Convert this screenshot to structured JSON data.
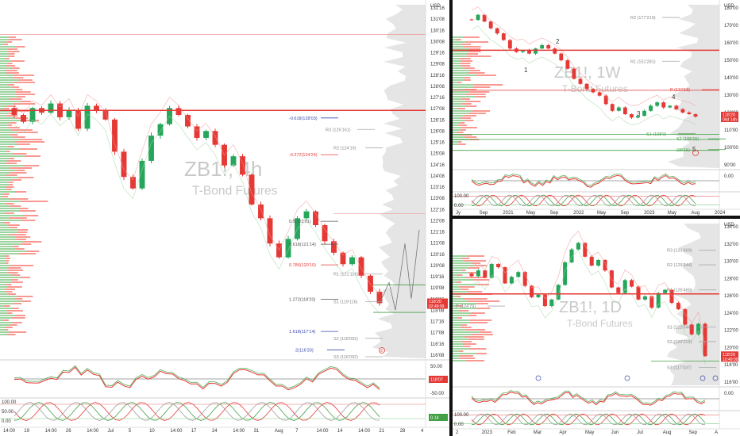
{
  "panels": {
    "left": {
      "watermark_symbol": "ZB1!, 4h",
      "watermark_name": "T-Bond Futures",
      "currency": "USD",
      "price_axis": [
        "131'16",
        "131'08",
        "130'16",
        "130'08",
        "129'16",
        "129'08",
        "128'16",
        "128'08",
        "127'16",
        "127'08",
        "126'16",
        "126'08",
        "125'16",
        "125'08",
        "124'16",
        "124'08",
        "123'16",
        "123'08",
        "122'16",
        "122'08",
        "121'16",
        "121'08",
        "120'16",
        "120'08",
        "119'16",
        "119'08",
        "118'16",
        "118'08",
        "117'16",
        "117'08",
        "116'16",
        "116'08"
      ],
      "last_price": "118'20",
      "last_price_sub": "02:49:09",
      "time_axis": [
        "14:00",
        "19",
        "14:00",
        "26",
        "14:00",
        "Jul",
        "5",
        "10",
        "14:00",
        "17",
        "24",
        "14:00",
        "31",
        "Aug",
        "7",
        "14:00",
        "14",
        "14:00",
        "21",
        "28",
        "4"
      ],
      "fib_labels": [
        "-0.618(128'03)",
        "-0.272(124'24)",
        "0.5(122'01)",
        "0.618(121'14)",
        "0.786(120'10)",
        "1.272(118'20)",
        "1.618(117'14)",
        "2(116'20)"
      ],
      "level_labels": [
        "R3 (125'161)",
        "R2 (124'19)",
        "R1 (121'116)",
        "S1 (119'116)",
        "S2 (118'092)",
        "S3 (116'092)"
      ],
      "marker_label": "E",
      "osc1_axis": [
        "50.00",
        "-50.00"
      ],
      "osc2_axis": [
        "100.00",
        "50.00",
        "0.00"
      ],
      "osc1_price": "118'07",
      "osc2_price": "0.14"
    },
    "top_right": {
      "watermark_symbol": "ZB1!, 1W",
      "watermark_name": "T-Bond Futures",
      "currency": "USD",
      "price_axis": [
        "180'00",
        "170'00",
        "160'00",
        "150'00",
        "140'00",
        "130'00",
        "120'00",
        "110'00",
        "100'00",
        "90'00"
      ],
      "last_price": "118'20",
      "last_price_sub": "04d 14h",
      "time_axis": [
        "Jy",
        "Sep",
        "2021",
        "May",
        "Sep",
        "2022",
        "May",
        "Sep",
        "2023",
        "May",
        "Aug",
        "2024"
      ],
      "wave_labels": [
        "1",
        "2",
        "3",
        "4",
        "5"
      ],
      "level_labels": [
        "R2 (177'219)",
        "R1 (151'281)",
        "P (134'18)",
        "S1 (108'0)",
        "S2 (105'15)",
        "(98'15)"
      ],
      "osc1_axis": [
        "0.00"
      ],
      "osc2_axis": [
        "100.00",
        "0.00"
      ]
    },
    "bottom_right": {
      "watermark_symbol": "ZB1!, 1D",
      "watermark_name": "T-Bond Futures",
      "currency": "USD",
      "price_axis": [
        "134'00",
        "132'00",
        "130'00",
        "128'00",
        "126'00",
        "124'00",
        "122'00",
        "120'00",
        "118'00",
        "116'00"
      ],
      "last_price": "118'20",
      "last_price_sub": "10:49:09",
      "time_axis": [
        "2",
        "2023",
        "Feb",
        "Mar",
        "Apr",
        "May",
        "Jun",
        "Jul",
        "Aug",
        "Sep",
        "A"
      ],
      "level_labels": [
        "R3 (131'469)",
        "R2 (129'844)",
        "R1 (126'469)",
        "P (124'79)",
        "S1 (122'044)",
        "S2 (120'219)",
        "S3 (117'037)"
      ],
      "osc1_axis": [
        "0.00"
      ],
      "osc2_axis": [
        "100.00",
        "0.00"
      ]
    }
  },
  "chart_data": [
    {
      "type": "line",
      "title": "ZB1!, 4h",
      "subtitle": "T-Bond Futures",
      "x": [
        0,
        1,
        2,
        3,
        4,
        5,
        6,
        7,
        8,
        9,
        10,
        11,
        12,
        13,
        14,
        15,
        16,
        17,
        18,
        19,
        20,
        21,
        22,
        23,
        24,
        25,
        26,
        27,
        28,
        29,
        30,
        31,
        32,
        33,
        34,
        35,
        36,
        37,
        38,
        39,
        40
      ],
      "series": [
        {
          "values": [
            126.8,
            126.5,
            127.1,
            126.9,
            127.3,
            126.7,
            127.0,
            126.2,
            127.2,
            127.0,
            126.6,
            125.2,
            124.1,
            123.6,
            124.8,
            125.9,
            126.4,
            127.1,
            126.8,
            126.3,
            125.8,
            126.1,
            125.5,
            124.6,
            125.0,
            124.2,
            122.9,
            122.3,
            121.2,
            120.6,
            121.4,
            122.3,
            122.6,
            122.0,
            121.3,
            120.8,
            120.3,
            120.6,
            119.8,
            119.1,
            118.6
          ]
        }
      ],
      "ylim": [
        116.2,
        131.6
      ]
    },
    {
      "type": "line",
      "title": "ZB1!, 1W",
      "subtitle": "T-Bond Futures",
      "x": [
        0,
        1,
        2,
        3,
        4,
        5,
        6,
        7,
        8,
        9,
        10,
        11,
        12,
        13,
        14,
        15,
        16,
        17,
        18,
        19,
        20,
        21,
        22,
        23,
        24,
        25,
        26,
        27,
        28,
        29,
        30,
        31,
        32,
        33,
        34,
        35
      ],
      "series": [
        {
          "values": [
            176,
            179,
            175,
            171,
            168,
            164,
            159,
            157,
            158,
            156,
            159,
            161,
            159,
            156,
            152,
            147,
            141,
            138,
            135,
            133,
            131,
            126,
            122,
            124,
            120,
            118,
            119,
            122,
            125,
            127,
            124,
            125,
            123,
            121,
            120,
            118.6
          ]
        }
      ],
      "ylim": [
        88,
        185
      ]
    },
    {
      "type": "line",
      "title": "ZB1!, 1D",
      "subtitle": "T-Bond Futures",
      "x": [
        0,
        1,
        2,
        3,
        4,
        5,
        6,
        7,
        8,
        9,
        10,
        11,
        12,
        13,
        14,
        15,
        16,
        17,
        18,
        19,
        20,
        21,
        22,
        23,
        24,
        25,
        26,
        27,
        28,
        29,
        30,
        31,
        32,
        33,
        34,
        35
      ],
      "series": [
        {
          "values": [
            128.5,
            129.2,
            128.3,
            130.0,
            129.6,
            127.6,
            128.4,
            129.0,
            127.3,
            125.9,
            126.2,
            124.8,
            125.6,
            127.4,
            130.2,
            131.8,
            132.6,
            130.9,
            129.8,
            130.5,
            129.2,
            127.1,
            126.4,
            128.0,
            127.2,
            125.6,
            126.0,
            124.6,
            126.4,
            126.8,
            125.2,
            124.4,
            122.5,
            121.3,
            122.6,
            118.6
          ]
        }
      ],
      "ylim": [
        115,
        135
      ]
    }
  ]
}
